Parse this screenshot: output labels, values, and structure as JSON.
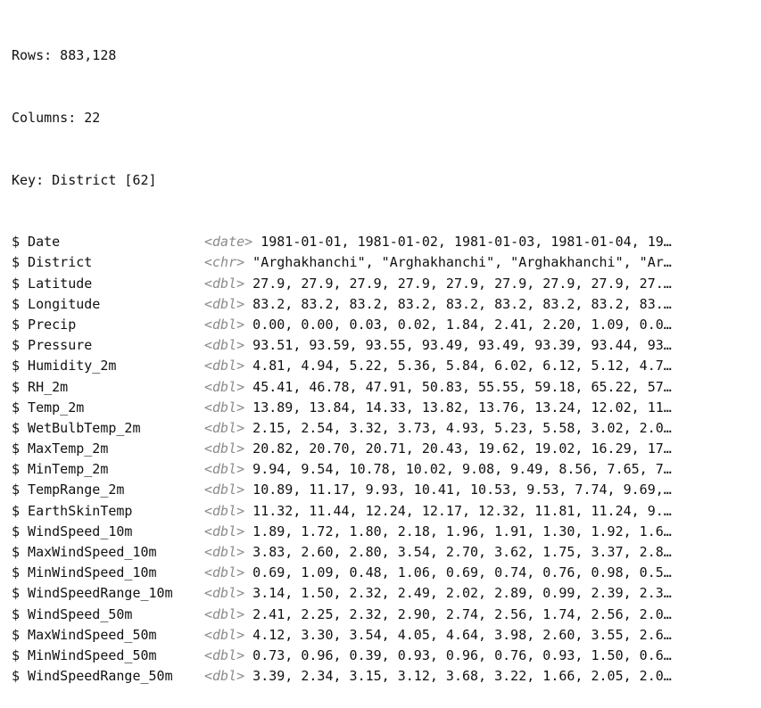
{
  "summary": {
    "rows": "Rows: 883,128",
    "columns": "Columns: 22",
    "key": "Key: District [62]"
  },
  "glimpse": [
    {
      "name": "$ Date",
      "type": "<date>",
      "values": " 1981-01-01, 1981-01-02, 1981-01-03, 1981-01-04, 19…"
    },
    {
      "name": "$ District",
      "type": "<chr>",
      "values": " \"Arghakhanchi\", \"Arghakhanchi\", \"Arghakhanchi\", \"Ar…"
    },
    {
      "name": "$ Latitude",
      "type": "<dbl>",
      "values": " 27.9, 27.9, 27.9, 27.9, 27.9, 27.9, 27.9, 27.9, 27.…"
    },
    {
      "name": "$ Longitude",
      "type": "<dbl>",
      "values": " 83.2, 83.2, 83.2, 83.2, 83.2, 83.2, 83.2, 83.2, 83.…"
    },
    {
      "name": "$ Precip",
      "type": "<dbl>",
      "values": " 0.00, 0.00, 0.03, 0.02, 1.84, 2.41, 2.20, 1.09, 0.0…"
    },
    {
      "name": "$ Pressure",
      "type": "<dbl>",
      "values": " 93.51, 93.59, 93.55, 93.49, 93.49, 93.39, 93.44, 93…"
    },
    {
      "name": "$ Humidity_2m",
      "type": "<dbl>",
      "values": " 4.81, 4.94, 5.22, 5.36, 5.84, 6.02, 6.12, 5.12, 4.7…"
    },
    {
      "name": "$ RH_2m",
      "type": "<dbl>",
      "values": " 45.41, 46.78, 47.91, 50.83, 55.55, 59.18, 65.22, 57…"
    },
    {
      "name": "$ Temp_2m",
      "type": "<dbl>",
      "values": " 13.89, 13.84, 14.33, 13.82, 13.76, 13.24, 12.02, 11…"
    },
    {
      "name": "$ WetBulbTemp_2m",
      "type": "<dbl>",
      "values": " 2.15, 2.54, 3.32, 3.73, 4.93, 5.23, 5.58, 3.02, 2.0…"
    },
    {
      "name": "$ MaxTemp_2m",
      "type": "<dbl>",
      "values": " 20.82, 20.70, 20.71, 20.43, 19.62, 19.02, 16.29, 17…"
    },
    {
      "name": "$ MinTemp_2m",
      "type": "<dbl>",
      "values": " 9.94, 9.54, 10.78, 10.02, 9.08, 9.49, 8.56, 7.65, 7…"
    },
    {
      "name": "$ TempRange_2m",
      "type": "<dbl>",
      "values": " 10.89, 11.17, 9.93, 10.41, 10.53, 9.53, 7.74, 9.69,…"
    },
    {
      "name": "$ EarthSkinTemp",
      "type": "<dbl>",
      "values": " 11.32, 11.44, 12.24, 12.17, 12.32, 11.81, 11.24, 9.…"
    },
    {
      "name": "$ WindSpeed_10m",
      "type": "<dbl>",
      "values": " 1.89, 1.72, 1.80, 2.18, 1.96, 1.91, 1.30, 1.92, 1.6…"
    },
    {
      "name": "$ MaxWindSpeed_10m",
      "type": "<dbl>",
      "values": " 3.83, 2.60, 2.80, 3.54, 2.70, 3.62, 1.75, 3.37, 2.8…"
    },
    {
      "name": "$ MinWindSpeed_10m",
      "type": "<dbl>",
      "values": " 0.69, 1.09, 0.48, 1.06, 0.69, 0.74, 0.76, 0.98, 0.5…"
    },
    {
      "name": "$ WindSpeedRange_10m",
      "type": "<dbl>",
      "values": " 3.14, 1.50, 2.32, 2.49, 2.02, 2.89, 0.99, 2.39, 2.3…"
    },
    {
      "name": "$ WindSpeed_50m",
      "type": "<dbl>",
      "values": " 2.41, 2.25, 2.32, 2.90, 2.74, 2.56, 1.74, 2.56, 2.0…"
    },
    {
      "name": "$ MaxWindSpeed_50m",
      "type": "<dbl>",
      "values": " 4.12, 3.30, 3.54, 4.05, 4.64, 3.98, 2.60, 3.55, 2.6…"
    },
    {
      "name": "$ MinWindSpeed_50m",
      "type": "<dbl>",
      "values": " 0.73, 0.96, 0.39, 0.93, 0.96, 0.76, 0.93, 1.50, 0.6…"
    },
    {
      "name": "$ WindSpeedRange_50m",
      "type": "<dbl>",
      "values": " 3.39, 2.34, 3.15, 3.12, 3.68, 3.22, 1.66, 2.05, 2.0…"
    }
  ],
  "colors": {
    "text": "#111111",
    "type_annotation": "#8a8a8a",
    "background": "#ffffff"
  }
}
